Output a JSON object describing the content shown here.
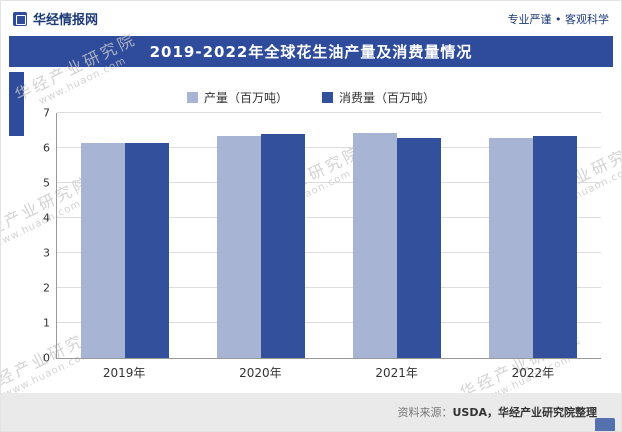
{
  "header": {
    "brand": "华经情报网",
    "slogan": "专业严谨 • 客观科学"
  },
  "title": "2019-2022年全球花生油产量及消费量情况",
  "legend": [
    {
      "label": "产量（百万吨）",
      "color": "#a7b4d4"
    },
    {
      "label": "消费量（百万吨）",
      "color": "#32509b"
    }
  ],
  "chart_data": {
    "type": "bar",
    "title": "2019-2022年全球花生油产量及消费量情况",
    "categories": [
      "2019年",
      "2020年",
      "2021年",
      "2022年"
    ],
    "series": [
      {
        "name": "产量（百万吨）",
        "color": "#a7b4d4",
        "values": [
          6.15,
          6.33,
          6.43,
          6.3
        ]
      },
      {
        "name": "消费量（百万吨）",
        "color": "#32509b",
        "values": [
          6.15,
          6.41,
          6.29,
          6.34
        ]
      }
    ],
    "xlabel": "",
    "ylabel": "",
    "ylim": [
      0,
      7
    ],
    "yticks": [
      0,
      1,
      2,
      3,
      4,
      5,
      6,
      7
    ],
    "grid": true,
    "legend_position": "top"
  },
  "watermark": {
    "line1": "华经产业研究院",
    "line2": "www.huaon.com"
  },
  "footer": {
    "source_label": "资料来源：",
    "source_text": "USDA，华经产业研究院整理"
  },
  "colors": {
    "accent": "#2e4c9b",
    "navy": "#1d3a78",
    "bar_production": "#a7b4d4",
    "bar_consumption": "#32509b",
    "grid": "#dcdcdc",
    "footer_bg": "#eaeaea",
    "watermark": "#c9c9c9"
  }
}
